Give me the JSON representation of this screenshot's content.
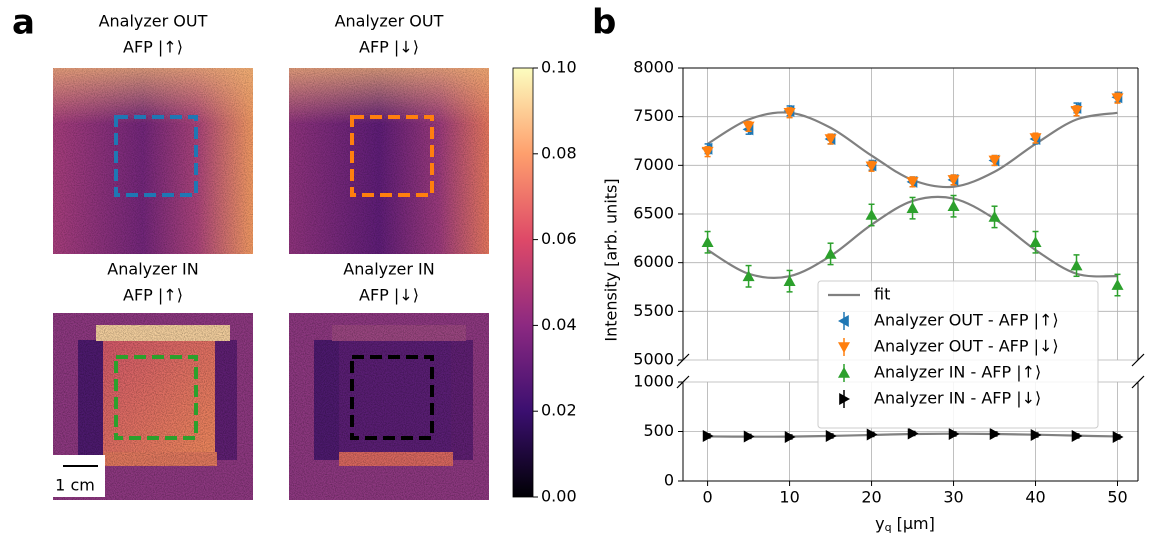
{
  "panel_a": {
    "label": "a",
    "images": [
      {
        "title": [
          "Analyzer OUT",
          "AFP |↑⟩"
        ]
      },
      {
        "title": [
          "Analyzer OUT",
          "AFP |↓⟩"
        ]
      },
      {
        "title": [
          "Analyzer IN",
          "AFP |↑⟩"
        ]
      },
      {
        "title": [
          "Analyzer IN",
          "AFP |↓⟩"
        ]
      }
    ],
    "scale_bar": "1 cm",
    "colorbar": {
      "lim": [
        0,
        0.1
      ],
      "ticks": [
        {
          "value": 0,
          "label": "0.00"
        },
        {
          "value": 0.02,
          "label": "0.02"
        },
        {
          "value": 0.04,
          "label": "0.04"
        },
        {
          "value": 0.06,
          "label": "0.06"
        },
        {
          "value": 0.08,
          "label": "0.08"
        },
        {
          "value": 0.1,
          "label": "0.10"
        }
      ]
    }
  },
  "chart_data": {
    "type": "scatter",
    "panel_label": "b",
    "xlabel": {
      "main": "y",
      "sub": "q",
      "unit": " [μm]"
    },
    "ylabel": "Intensity [arb. units]",
    "xlim": [
      -3,
      52.5
    ],
    "xticks": [
      0,
      10,
      20,
      30,
      40,
      50
    ],
    "ylim_segments": [
      [
        5000,
        8000
      ],
      [
        0,
        1000
      ]
    ],
    "yticks_segments": [
      [
        5000,
        5500,
        6000,
        6500,
        7000,
        7500,
        8000
      ],
      [
        0,
        500,
        1000
      ]
    ],
    "grid": true,
    "legend": "center right",
    "x": [
      0,
      5,
      10,
      15,
      20,
      25,
      30,
      35,
      40,
      45,
      50
    ],
    "fit": {
      "name": "fit",
      "color": "#808080",
      "curves": [
        [
          7220,
          7471,
          7540,
          7386,
          7100,
          6849,
          6780,
          6934,
          7220,
          7471,
          7540
        ],
        [
          6130,
          5886,
          5861,
          6069,
          6390,
          6634,
          6659,
          6451,
          6130,
          5886,
          5861
        ],
        [
          450,
          448,
          448,
          455,
          465,
          475,
          478,
          475,
          468,
          458,
          450
        ]
      ]
    },
    "series": [
      {
        "name": "Analyzer OUT - AFP |↑⟩",
        "color": "#1f77b4",
        "marker": "left",
        "values": [
          7170,
          7370,
          7560,
          7270,
          7000,
          6830,
          6850,
          7050,
          7270,
          7590,
          7700
        ],
        "errors": [
          50,
          50,
          50,
          50,
          50,
          50,
          50,
          50,
          50,
          50,
          50
        ]
      },
      {
        "name": "Analyzer OUT - AFP |↓⟩",
        "color": "#ff7f0e",
        "marker": "down",
        "values": [
          7140,
          7400,
          7540,
          7270,
          6990,
          6830,
          6850,
          7050,
          7280,
          7560,
          7690
        ],
        "errors": [
          50,
          50,
          50,
          50,
          50,
          50,
          50,
          50,
          50,
          50,
          50
        ]
      },
      {
        "name": "Analyzer IN - AFP |↑⟩",
        "color": "#2ca02c",
        "marker": "up",
        "values": [
          6210,
          5860,
          5810,
          6090,
          6490,
          6560,
          6580,
          6470,
          6210,
          5970,
          5770
        ],
        "errors": [
          110,
          110,
          110,
          110,
          110,
          110,
          110,
          110,
          110,
          110,
          110
        ]
      },
      {
        "name": "Analyzer IN - AFP |↓⟩",
        "color": "#000000",
        "marker": "right",
        "values": [
          455,
          450,
          445,
          455,
          470,
          480,
          475,
          475,
          465,
          455,
          445
        ],
        "errors": [
          20,
          20,
          20,
          20,
          20,
          20,
          20,
          20,
          20,
          20,
          20
        ]
      }
    ]
  }
}
